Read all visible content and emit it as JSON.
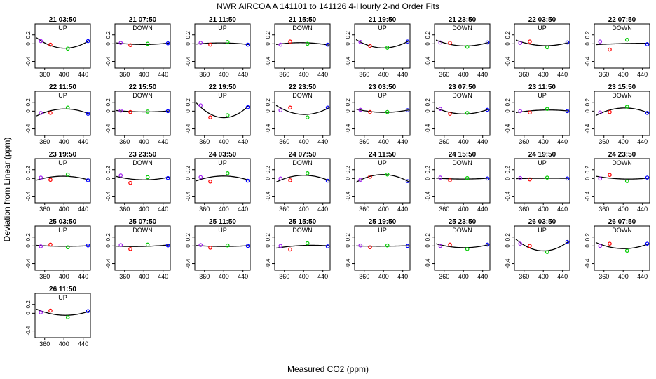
{
  "title": "NWR   AIRCOA A   141101 to 141126   4-Hourly 2-nd Order Fits",
  "xlabel": "Measured CO2 (ppm)",
  "ylabel": "Deviation from Linear (ppm)",
  "colors": {
    "curve": "#000000",
    "p1": "#a020f0",
    "p2": "#ff0000",
    "p3": "#00cc00",
    "p4": "#0000ff"
  },
  "chart_data": {
    "type": "scatter",
    "xlim": [
      340,
      455
    ],
    "ylim": [
      -0.55,
      0.45
    ],
    "x_ticks": [
      360,
      400,
      440
    ],
    "y_ticks": [
      -0.4,
      0,
      0.2
    ],
    "y_tick_labels": [
      "-0.4",
      "0",
      "0.2"
    ],
    "std_x": [
      352,
      372,
      408,
      450
    ],
    "panels": [
      {
        "label": "21 03:50",
        "dir": "UP",
        "y": [
          0.06,
          -0.02,
          -0.11,
          0.06
        ]
      },
      {
        "label": "21 07:50",
        "dir": "DOWN",
        "y": [
          0.02,
          -0.03,
          0.0,
          0.01
        ]
      },
      {
        "label": "21 11:50",
        "dir": "UP",
        "y": [
          0.02,
          -0.02,
          0.04,
          -0.02
        ]
      },
      {
        "label": "21 15:50",
        "dir": "DOWN",
        "y": [
          -0.02,
          0.05,
          0.0,
          -0.02
        ]
      },
      {
        "label": "21 19:50",
        "dir": "UP",
        "y": [
          0.04,
          -0.05,
          -0.09,
          0.05
        ]
      },
      {
        "label": "21 23:50",
        "dir": "DOWN",
        "y": [
          0.03,
          0.02,
          -0.07,
          0.03
        ]
      },
      {
        "label": "22 03:50",
        "dir": "UP",
        "y": [
          0.02,
          0.05,
          -0.08,
          0.03
        ]
      },
      {
        "label": "22 07:50",
        "dir": "DOWN",
        "y": [
          0.05,
          -0.13,
          0.09,
          -0.01
        ]
      },
      {
        "label": "22 11:50",
        "dir": "UP",
        "y": [
          -0.04,
          -0.04,
          0.08,
          -0.06
        ]
      },
      {
        "label": "22 15:50",
        "dir": "DOWN",
        "y": [
          0.01,
          -0.02,
          -0.01,
          0.0
        ]
      },
      {
        "label": "22 19:50",
        "dir": "UP",
        "y": [
          0.13,
          -0.14,
          -0.09,
          0.09
        ]
      },
      {
        "label": "22 23:50",
        "dir": "DOWN",
        "y": [
          0.02,
          0.08,
          -0.14,
          0.08
        ]
      },
      {
        "label": "23 03:50",
        "dir": "UP",
        "y": [
          0.03,
          -0.02,
          -0.02,
          0.02
        ]
      },
      {
        "label": "23 07:50",
        "dir": "DOWN",
        "y": [
          0.05,
          -0.06,
          -0.04,
          0.03
        ]
      },
      {
        "label": "23 11:50",
        "dir": "UP",
        "y": [
          0.0,
          -0.03,
          0.05,
          0.0
        ]
      },
      {
        "label": "23 15:50",
        "dir": "DOWN",
        "y": [
          -0.03,
          -0.02,
          0.1,
          -0.04
        ]
      },
      {
        "label": "23 19:50",
        "dir": "UP",
        "y": [
          0.02,
          -0.03,
          0.09,
          -0.04
        ]
      },
      {
        "label": "23 23:50",
        "dir": "DOWN",
        "y": [
          0.07,
          -0.1,
          0.03,
          0.01
        ]
      },
      {
        "label": "24 03:50",
        "dir": "UP",
        "y": [
          0.03,
          -0.07,
          0.12,
          -0.05
        ]
      },
      {
        "label": "24 07:50",
        "dir": "DOWN",
        "y": [
          0.0,
          -0.04,
          0.12,
          -0.05
        ]
      },
      {
        "label": "24 11:50",
        "dir": "UP",
        "y": [
          -0.03,
          0.04,
          0.09,
          -0.06
        ]
      },
      {
        "label": "24 15:50",
        "dir": "DOWN",
        "y": [
          0.02,
          -0.04,
          0.01,
          0.0
        ]
      },
      {
        "label": "24 19:50",
        "dir": "UP",
        "y": [
          0.01,
          -0.02,
          0.02,
          0.0
        ]
      },
      {
        "label": "24 23:50",
        "dir": "DOWN",
        "y": [
          0.0,
          0.08,
          -0.06,
          0.02
        ]
      },
      {
        "label": "25 03:50",
        "dir": "UP",
        "y": [
          -0.01,
          0.03,
          -0.03,
          0.01
        ]
      },
      {
        "label": "25 07:50",
        "dir": "DOWN",
        "y": [
          0.02,
          -0.07,
          0.03,
          0.01
        ]
      },
      {
        "label": "25 11:50",
        "dir": "UP",
        "y": [
          0.02,
          -0.04,
          0.01,
          0.0
        ]
      },
      {
        "label": "25 15:50",
        "dir": "DOWN",
        "y": [
          0.0,
          -0.08,
          0.06,
          -0.01
        ]
      },
      {
        "label": "25 19:50",
        "dir": "UP",
        "y": [
          0.01,
          -0.03,
          0.01,
          0.0
        ]
      },
      {
        "label": "25 23:50",
        "dir": "DOWN",
        "y": [
          0.0,
          0.03,
          -0.07,
          0.03
        ]
      },
      {
        "label": "26 03:50",
        "dir": "UP",
        "y": [
          0.05,
          0.0,
          -0.14,
          0.09
        ]
      },
      {
        "label": "26 07:50",
        "dir": "DOWN",
        "y": [
          0.0,
          0.05,
          -0.11,
          0.05
        ]
      },
      {
        "label": "26 11:50",
        "dir": "UP",
        "y": [
          0.02,
          0.06,
          -0.09,
          0.05
        ]
      }
    ]
  }
}
